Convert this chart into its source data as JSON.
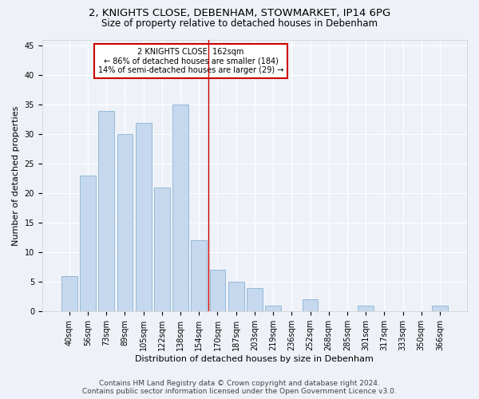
{
  "title1": "2, KNIGHTS CLOSE, DEBENHAM, STOWMARKET, IP14 6PG",
  "title2": "Size of property relative to detached houses in Debenham",
  "xlabel": "Distribution of detached houses by size in Debenham",
  "ylabel": "Number of detached properties",
  "categories": [
    "40sqm",
    "56sqm",
    "73sqm",
    "89sqm",
    "105sqm",
    "122sqm",
    "138sqm",
    "154sqm",
    "170sqm",
    "187sqm",
    "203sqm",
    "219sqm",
    "236sqm",
    "252sqm",
    "268sqm",
    "285sqm",
    "301sqm",
    "317sqm",
    "333sqm",
    "350sqm",
    "366sqm"
  ],
  "values": [
    6,
    23,
    34,
    30,
    32,
    21,
    35,
    12,
    7,
    5,
    4,
    1,
    0,
    2,
    0,
    0,
    1,
    0,
    0,
    0,
    1
  ],
  "bar_color": "#c5d8ed",
  "bar_edgecolor": "#8ab4d4",
  "vline_x": 7.5,
  "vline_color": "#cc0000",
  "annotation_title": "2 KNIGHTS CLOSE: 162sqm",
  "annotation_line1": "← 86% of detached houses are smaller (184)",
  "annotation_line2": "14% of semi-detached houses are larger (29) →",
  "annotation_box_color": "#cc0000",
  "ylim": [
    0,
    46
  ],
  "yticks": [
    0,
    5,
    10,
    15,
    20,
    25,
    30,
    35,
    40,
    45
  ],
  "footer1": "Contains HM Land Registry data © Crown copyright and database right 2024.",
  "footer2": "Contains public sector information licensed under the Open Government Licence v3.0.",
  "bg_color": "#eef2f8",
  "plot_bg_color": "#eef2f8",
  "title1_fontsize": 9.5,
  "title2_fontsize": 8.5,
  "xlabel_fontsize": 8,
  "ylabel_fontsize": 8,
  "tick_fontsize": 7,
  "annot_fontsize": 7,
  "footer_fontsize": 6.5
}
